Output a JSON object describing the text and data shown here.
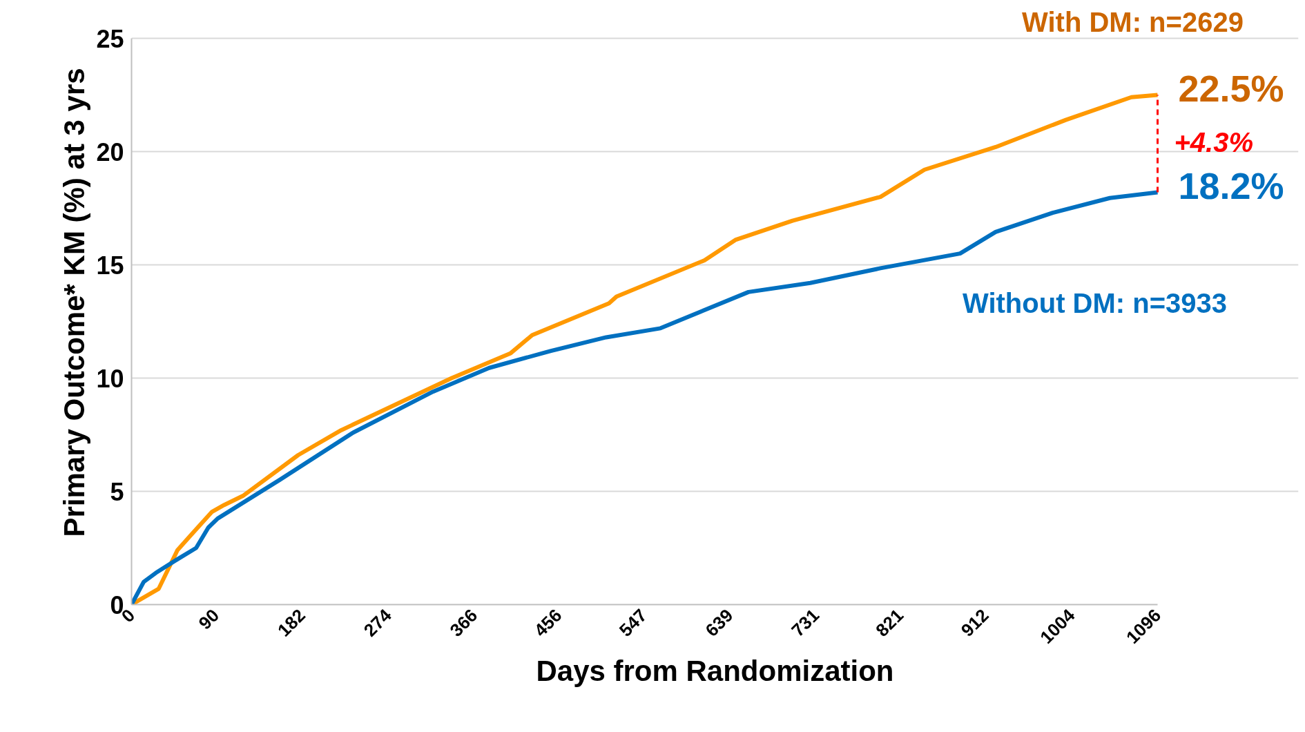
{
  "chart_data": {
    "type": "line",
    "xlabel": "Days from Randomization",
    "ylabel": "Primary Outcome* KM (%) at 3 yrs",
    "xlim": [
      0,
      1096
    ],
    "ylim": [
      0,
      25
    ],
    "xticks": [
      0,
      90,
      182,
      274,
      366,
      456,
      547,
      639,
      731,
      821,
      912,
      1004,
      1096
    ],
    "yticks": [
      0,
      5,
      10,
      15,
      20,
      25
    ],
    "grid": "y",
    "marker": "none",
    "line_style": "solid",
    "series": [
      {
        "color": "#ff9900",
        "x": [
          0,
          29,
          49,
          63,
          86,
          99,
          119,
          178,
          224,
          342,
          405,
          428,
          510,
          518,
          612,
          645,
          706,
          800,
          847,
          923,
          998,
          1068,
          1096
        ],
        "values": [
          0,
          0.7,
          2.4,
          3.05,
          4.1,
          4.4,
          4.8,
          6.6,
          7.7,
          10.0,
          11.1,
          11.9,
          13.3,
          13.6,
          15.2,
          16.1,
          16.95,
          18.0,
          19.2,
          20.2,
          21.4,
          22.4,
          22.5
        ]
      },
      {
        "color": "#0070c0",
        "x": [
          0,
          13,
          26,
          49,
          69,
          82,
          92,
          158,
          237,
          322,
          382,
          448,
          507,
          565,
          659,
          725,
          800,
          885,
          923,
          984,
          1045,
          1096
        ],
        "values": [
          0,
          1.0,
          1.4,
          2.0,
          2.5,
          3.4,
          3.8,
          5.5,
          7.6,
          9.4,
          10.45,
          11.2,
          11.8,
          12.2,
          13.8,
          14.2,
          14.85,
          15.5,
          16.45,
          17.3,
          17.95,
          18.2
        ]
      }
    ],
    "annotations": [
      "With DM: n=2629",
      "Without DM: n=3933",
      {
        "text": "22.5%",
        "x": 1096,
        "y": 22.5
      },
      {
        "text": "18.2%",
        "x": 1096,
        "y": 18.2
      },
      "+4.3%"
    ]
  }
}
